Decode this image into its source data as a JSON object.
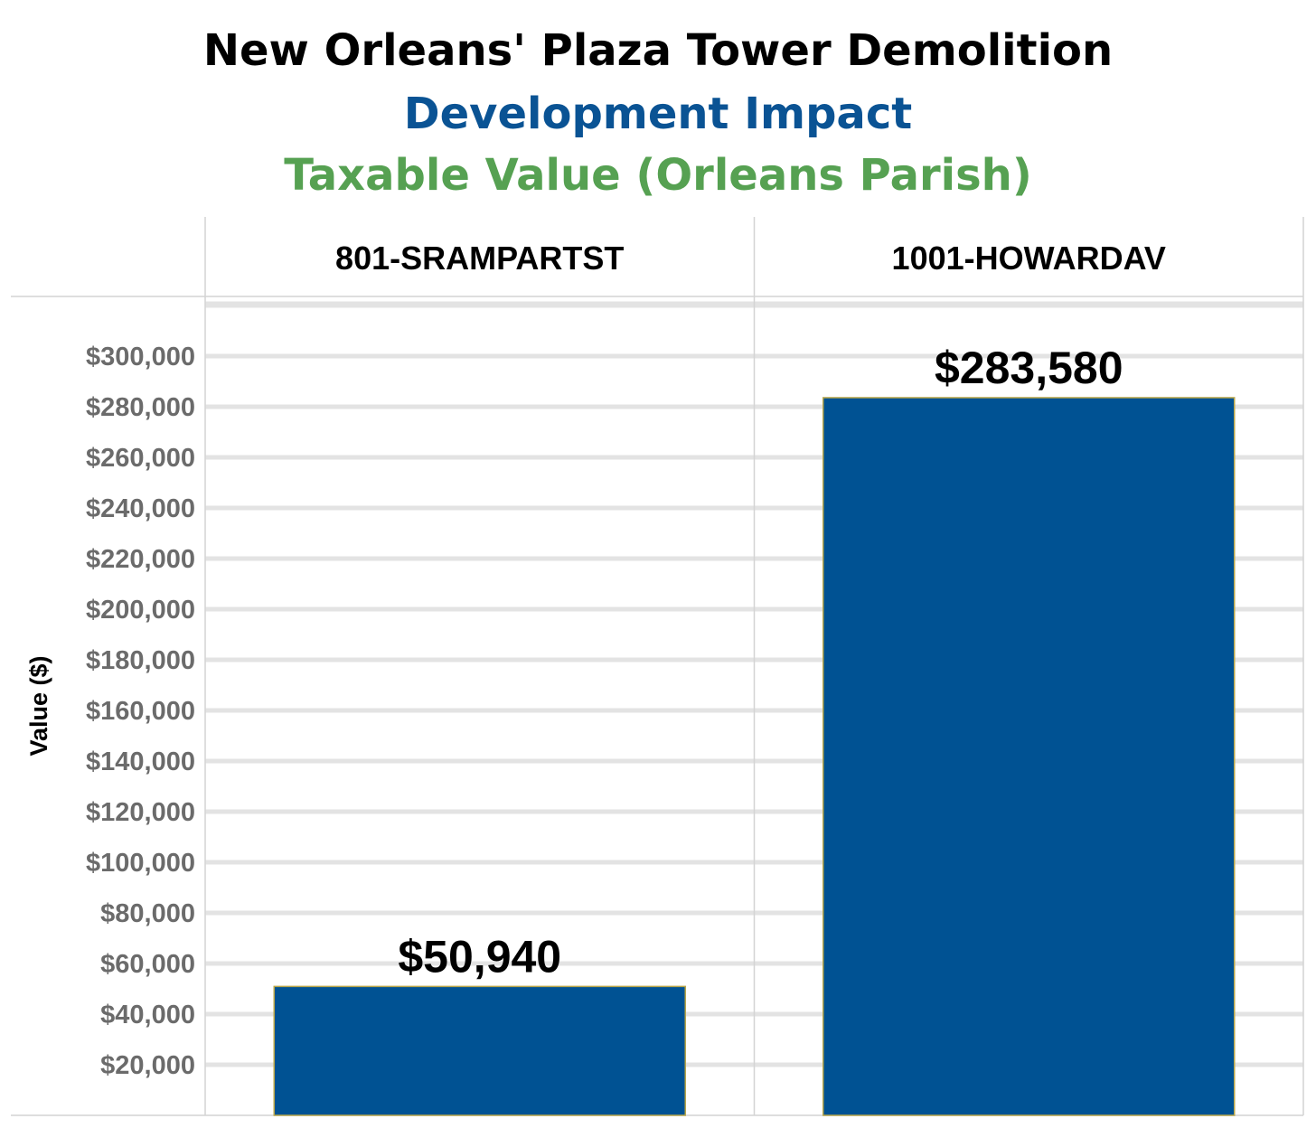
{
  "chart_data": {
    "type": "bar",
    "title": "New Orleans' Plaza Tower Demolition",
    "subtitle": "Development Impact",
    "subtitle2": "Taxable Value (Orleans Parish)",
    "ylabel": "Value ($)",
    "categories": [
      "801-SRAMPARTST",
      "1001-HOWARDAV"
    ],
    "values": [
      50940,
      283580
    ],
    "value_labels": [
      "$50,940",
      "$283,580"
    ],
    "yticks": [
      20000,
      40000,
      60000,
      80000,
      100000,
      120000,
      140000,
      160000,
      180000,
      200000,
      220000,
      240000,
      260000,
      280000,
      300000
    ],
    "ytick_labels": [
      "$20,000",
      "$40,000",
      "$60,000",
      "$80,000",
      "$100,000",
      "$120,000",
      "$140,000",
      "$160,000",
      "$180,000",
      "$200,000",
      "$220,000",
      "$240,000",
      "$260,000",
      "$280,000",
      "$300,000"
    ],
    "ylim": [
      0,
      320000
    ],
    "grid": true,
    "colors": {
      "title": "#000000",
      "subtitle": "#0a5394",
      "subtitle2": "#56a152",
      "bar": "#005293",
      "bar_edge": "#b8a64a",
      "grid": "#e3e3e3",
      "divider": "#d4d4d4",
      "tick": "#6b6b6b"
    }
  }
}
